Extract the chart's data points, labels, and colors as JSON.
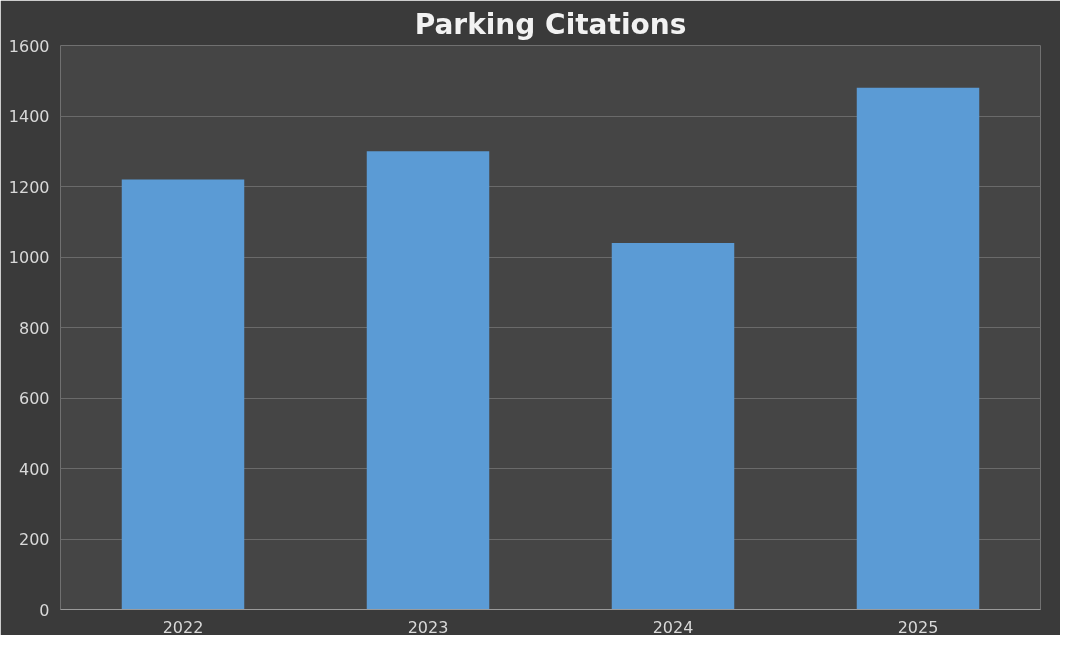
{
  "chart_data": {
    "type": "bar",
    "title": "Parking Citations",
    "categories": [
      "2022",
      "2023",
      "2024",
      "2025"
    ],
    "values": [
      1220,
      1300,
      1040,
      1480
    ],
    "color": "#5b9bd5",
    "ylim": [
      0,
      1600
    ],
    "yticks": [
      0,
      200,
      400,
      600,
      800,
      1000,
      1200,
      1400,
      1600
    ],
    "grid": "y"
  }
}
